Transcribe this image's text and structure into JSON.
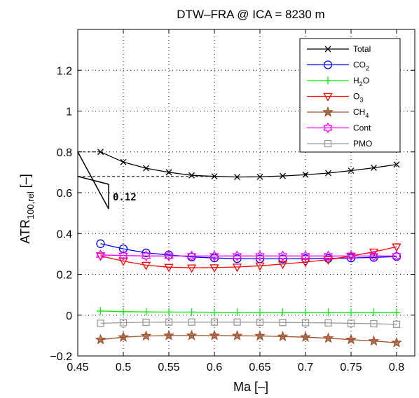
{
  "chart_data": {
    "type": "line",
    "title": "DTW–FRA @ ICA = 8230 m",
    "xlabel": "Ma [–]",
    "ylabel_main": "ATR",
    "ylabel_sub": "100,rel",
    "ylabel_unit": " [–]",
    "xlim": [
      0.45,
      0.82
    ],
    "ylim": [
      -0.2,
      1.4
    ],
    "xticks": [
      0.45,
      0.5,
      0.55,
      0.6,
      0.65,
      0.7,
      0.75,
      0.8
    ],
    "xtick_labels": [
      "0.45",
      "0.5",
      "0.55",
      "0.6",
      "0.65",
      "0.7",
      "0.75",
      "0.8"
    ],
    "yticks": [
      -0.2,
      0,
      0.2,
      0.4,
      0.6,
      0.8,
      1,
      1.2
    ],
    "ytick_labels": [
      "−0.2",
      "0",
      "0.2",
      "0.4",
      "0.6",
      "0.8",
      "1",
      "1.2"
    ],
    "grid": true,
    "legend_position": "top-right",
    "x": [
      0.475,
      0.5,
      0.525,
      0.55,
      0.575,
      0.6,
      0.625,
      0.65,
      0.675,
      0.7,
      0.725,
      0.75,
      0.775,
      0.8
    ],
    "series": [
      {
        "name": "Total",
        "sub": "",
        "color": "#000000",
        "marker": "x",
        "values": [
          0.8,
          0.75,
          0.72,
          0.7,
          0.685,
          0.68,
          0.677,
          0.678,
          0.682,
          0.688,
          0.696,
          0.708,
          0.722,
          0.738
        ]
      },
      {
        "name": "CO",
        "sub": "2",
        "color": "#0000ff",
        "marker": "circle",
        "values": [
          0.35,
          0.325,
          0.305,
          0.295,
          0.285,
          0.28,
          0.277,
          0.276,
          0.276,
          0.277,
          0.278,
          0.28,
          0.283,
          0.287
        ]
      },
      {
        "name": "H",
        "sub": "2",
        "suffix": "O",
        "color": "#00ee00",
        "marker": "plus",
        "values": [
          0.02,
          0.017,
          0.016,
          0.015,
          0.015,
          0.014,
          0.014,
          0.014,
          0.014,
          0.014,
          0.014,
          0.014,
          0.014,
          0.014
        ]
      },
      {
        "name": "O",
        "sub": "3",
        "color": "#ff0000",
        "marker": "triangle-down",
        "values": [
          0.29,
          0.265,
          0.245,
          0.235,
          0.232,
          0.233,
          0.236,
          0.242,
          0.25,
          0.26,
          0.272,
          0.29,
          0.31,
          0.335
        ]
      },
      {
        "name": "CH",
        "sub": "4",
        "color": "#a0522d",
        "marker": "star",
        "values": [
          -0.12,
          -0.108,
          -0.102,
          -0.1,
          -0.1,
          -0.1,
          -0.101,
          -0.102,
          -0.105,
          -0.108,
          -0.113,
          -0.12,
          -0.127,
          -0.135
        ]
      },
      {
        "name": "Cont",
        "sub": "",
        "color": "#ff00ff",
        "marker": "hexagram",
        "values": [
          0.295,
          0.292,
          0.29,
          0.29,
          0.29,
          0.29,
          0.29,
          0.29,
          0.29,
          0.29,
          0.29,
          0.29,
          0.29,
          0.29
        ]
      },
      {
        "name": "PMO",
        "sub": "",
        "color": "#999999",
        "marker": "square",
        "values": [
          -0.04,
          -0.037,
          -0.035,
          -0.034,
          -0.034,
          -0.034,
          -0.034,
          -0.035,
          -0.036,
          -0.037,
          -0.038,
          -0.04,
          -0.042,
          -0.045
        ]
      }
    ],
    "annotation": {
      "text": "0.12",
      "ref_high": 0.8,
      "ref_low": 0.68
    }
  }
}
